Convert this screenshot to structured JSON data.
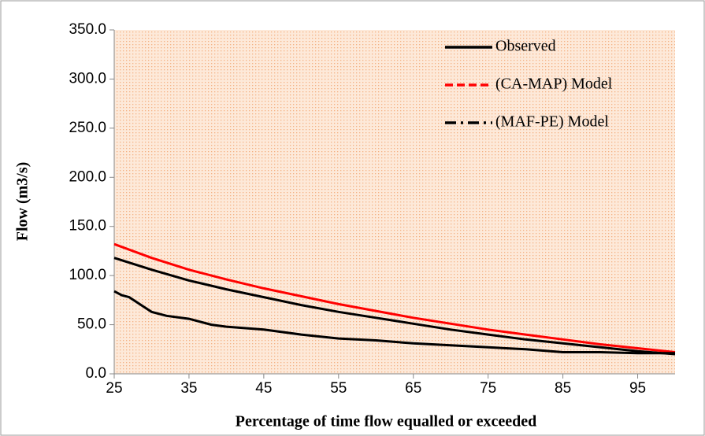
{
  "chart_data": {
    "type": "line",
    "x_label": "Percentage of time flow equalled or exceeded",
    "y_label": "Flow (m3/s)",
    "xlim": [
      25,
      100
    ],
    "ylim": [
      0,
      350
    ],
    "xticks": [
      25,
      35,
      45,
      55,
      65,
      75,
      85,
      95
    ],
    "yticks": [
      {
        "value": 0,
        "label": "0.0"
      },
      {
        "value": 50,
        "label": "50.0"
      },
      {
        "value": 100,
        "label": "100.0"
      },
      {
        "value": 150,
        "label": "150.0"
      },
      {
        "value": 200,
        "label": "200.0"
      },
      {
        "value": 250,
        "label": "250.0"
      },
      {
        "value": 300,
        "label": "300.0"
      },
      {
        "value": 350,
        "label": "350.0"
      }
    ],
    "legend": "top-right",
    "series": [
      {
        "name": "Observed",
        "color": "#000000",
        "dash": "solid",
        "x": [
          25,
          30,
          35,
          40,
          45,
          50,
          55,
          60,
          65,
          70,
          75,
          80,
          85,
          90,
          95,
          100
        ],
        "values": [
          118,
          106,
          95,
          86,
          78,
          70,
          63,
          57,
          51,
          45,
          40,
          35,
          31,
          27,
          23,
          20
        ]
      },
      {
        "name": "(CA-MAP) Model",
        "color": "#ff0000",
        "dash": "dashed",
        "x": [
          25,
          30,
          35,
          40,
          45,
          50,
          55,
          60,
          65,
          70,
          75,
          80,
          85,
          90,
          95,
          100
        ],
        "values": [
          132,
          118,
          106,
          96,
          87,
          79,
          71,
          64,
          57,
          51,
          45,
          40,
          35,
          30,
          26,
          22
        ]
      },
      {
        "name": "(MAF-PE) Model",
        "color": "#000000",
        "dash": "dashdot",
        "x": [
          25,
          26,
          27,
          28,
          29,
          30,
          32,
          35,
          38,
          40,
          45,
          50,
          55,
          60,
          65,
          70,
          75,
          80,
          85,
          90,
          95,
          100
        ],
        "values": [
          84,
          80,
          78,
          73,
          68,
          63,
          59,
          56,
          50,
          48,
          45,
          40,
          36,
          34,
          31,
          29,
          27,
          25,
          22,
          22,
          21,
          21
        ]
      }
    ]
  }
}
